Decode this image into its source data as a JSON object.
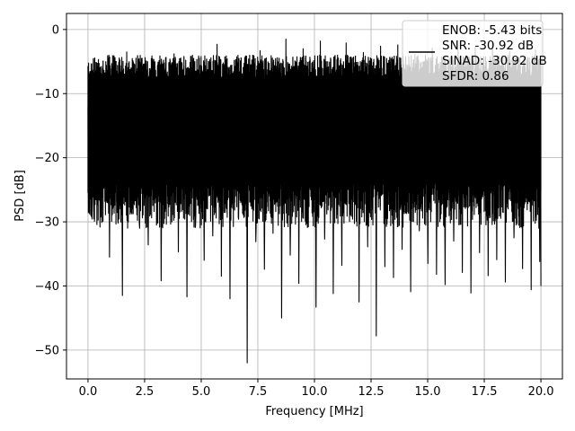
{
  "chart_data": {
    "type": "line",
    "title": "",
    "xlabel": "Frequency [MHz]",
    "ylabel": "PSD [dB]",
    "xlim": [
      -0.95,
      20.95
    ],
    "ylim": [
      -54.5,
      2.5
    ],
    "xticks": [
      0.0,
      2.5,
      5.0,
      7.5,
      10.0,
      12.5,
      15.0,
      17.5,
      20.0
    ],
    "xtick_labels": [
      "0.0",
      "2.5",
      "5.0",
      "7.5",
      "10.0",
      "12.5",
      "15.0",
      "17.5",
      "20.0"
    ],
    "yticks": [
      0,
      -10,
      -20,
      -30,
      -40,
      -50
    ],
    "ytick_labels": [
      "0",
      "−10",
      "−20",
      "−30",
      "−40",
      "−50"
    ],
    "grid": true,
    "legend": {
      "placement": "top-right",
      "entries": [
        "ENOB: -5.43 bits",
        "SNR: -30.92 dB",
        "SINAD: -30.92 dB",
        "SFDR: 0.86"
      ]
    },
    "series": [
      {
        "color": "#000000",
        "x": [
          0.0,
          0.19,
          0.38,
          0.57,
          0.76,
          0.95,
          1.14,
          1.33,
          1.52,
          1.71,
          1.9,
          2.09,
          2.28,
          2.47,
          2.66,
          2.85,
          3.04,
          3.23,
          3.42,
          3.61,
          3.8,
          3.99,
          4.18,
          4.37,
          4.56,
          4.75,
          4.94,
          5.13,
          5.32,
          5.51,
          5.7,
          5.89,
          6.08,
          6.27,
          6.46,
          6.65,
          6.84,
          7.03,
          7.22,
          7.41,
          7.6,
          7.79,
          7.98,
          8.17,
          8.36,
          8.55,
          8.74,
          8.93,
          9.12,
          9.31,
          9.5,
          9.69,
          9.88,
          10.07,
          10.26,
          10.45,
          10.64,
          10.83,
          11.02,
          11.21,
          11.4,
          11.59,
          11.78,
          11.97,
          12.16,
          12.35,
          12.54,
          12.73,
          12.92,
          13.11,
          13.3,
          13.49,
          13.68,
          13.87,
          14.06,
          14.25,
          14.44,
          14.63,
          14.82,
          15.01,
          15.2,
          15.39,
          15.58,
          15.77,
          15.96,
          16.15,
          16.34,
          16.53,
          16.72,
          16.91,
          17.1,
          17.29,
          17.48,
          17.67,
          17.86,
          18.05,
          18.24,
          18.43,
          18.62,
          18.81,
          19.0,
          19.19,
          19.38,
          19.57,
          19.76,
          19.95,
          20.0
        ],
        "y": [
          -12.0,
          -27.5,
          -5.2,
          -29.0,
          -6.8,
          -35.5,
          -4.1,
          -30.2,
          -41.5,
          -3.5,
          -28.4,
          -8.2,
          -31.0,
          -5.9,
          -33.6,
          -4.6,
          -29.8,
          -39.2,
          -6.1,
          -27.3,
          -3.8,
          -34.7,
          -6.4,
          -41.7,
          -4.2,
          -30.5,
          -7.1,
          -36.0,
          -5.0,
          -32.2,
          -2.3,
          -38.5,
          -6.9,
          -42.0,
          -4.8,
          -29.6,
          -7.6,
          -52.0,
          -5.5,
          -33.1,
          -3.3,
          -37.4,
          -6.2,
          -31.8,
          -4.4,
          -45.0,
          -1.5,
          -35.2,
          -6.7,
          -39.6,
          -3.0,
          -30.9,
          -5.3,
          -43.3,
          -1.8,
          -32.7,
          -7.3,
          -41.2,
          -4.0,
          -36.8,
          -2.1,
          -28.9,
          -6.0,
          -42.5,
          -3.6,
          -33.9,
          -5.7,
          -47.8,
          -2.6,
          -37.0,
          -4.9,
          -38.7,
          -2.4,
          -34.3,
          -6.5,
          -40.9,
          -3.9,
          -31.4,
          -5.1,
          -36.5,
          -2.9,
          -38.2,
          -6.3,
          -39.8,
          -4.5,
          -33.0,
          -3.1,
          -37.9,
          -5.8,
          -41.1,
          -2.7,
          -34.8,
          -4.3,
          -38.4,
          -2.0,
          -35.9,
          -6.6,
          -39.4,
          -3.4,
          -32.5,
          -5.6,
          -37.3,
          -4.7,
          -40.6,
          -3.2,
          -36.2,
          -40.0
        ]
      }
    ]
  }
}
